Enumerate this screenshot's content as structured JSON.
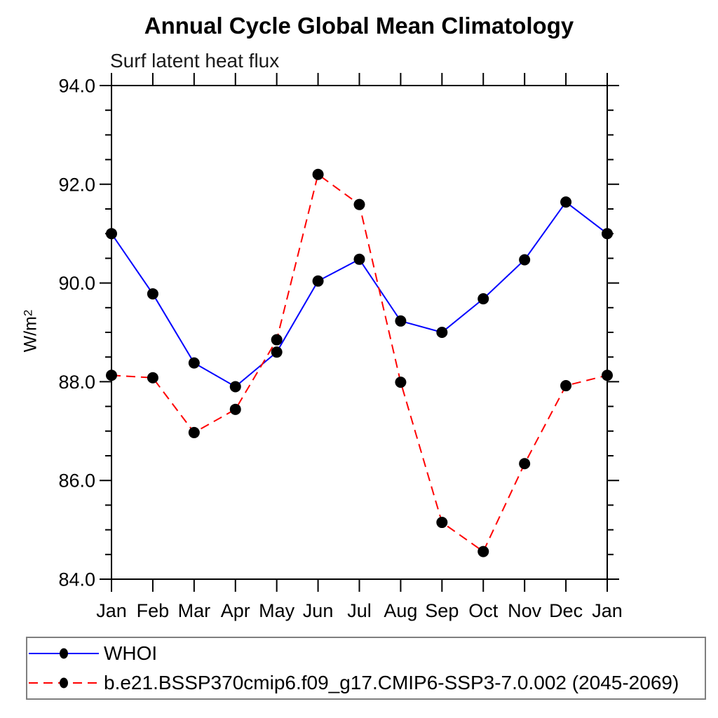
{
  "chart_data": {
    "type": "line",
    "title": "Annual Cycle Global Mean Climatology",
    "subtitle": "Surf latent heat flux",
    "ylabel": {
      "base": "W/m",
      "sup": "2"
    },
    "xlabel": "",
    "x_categories": [
      "Jan",
      "Feb",
      "Mar",
      "Apr",
      "May",
      "Jun",
      "Jul",
      "Aug",
      "Sep",
      "Oct",
      "Nov",
      "Dec",
      "Jan"
    ],
    "ylim": [
      84.0,
      94.0
    ],
    "y_major_step": 2.0,
    "y_minor_step": 0.5,
    "y_tick_decimals": 1,
    "grid": false,
    "frame": "full-box",
    "legend_position": "bottom-left-box",
    "marker": "filled-circle",
    "marker_color": "#000000",
    "axis_color": "#000000",
    "legend_border_color": "#7f7f7f",
    "series": [
      {
        "name": "WHOI",
        "color": "#0000ff",
        "line_style": "solid",
        "values": [
          91.0,
          89.78,
          88.38,
          87.9,
          88.6,
          90.04,
          90.48,
          89.23,
          89.0,
          89.68,
          90.47,
          91.64,
          91.0
        ]
      },
      {
        "name": "b.e21.BSSP370cmip6.f09_g17.CMIP6-SSP3-7.0.002 (2045-2069)",
        "color": "#ff0000",
        "line_style": "dashed",
        "values": [
          88.13,
          88.08,
          86.97,
          87.44,
          88.85,
          92.2,
          91.59,
          87.99,
          85.15,
          84.56,
          86.34,
          87.92,
          88.13
        ]
      }
    ]
  }
}
